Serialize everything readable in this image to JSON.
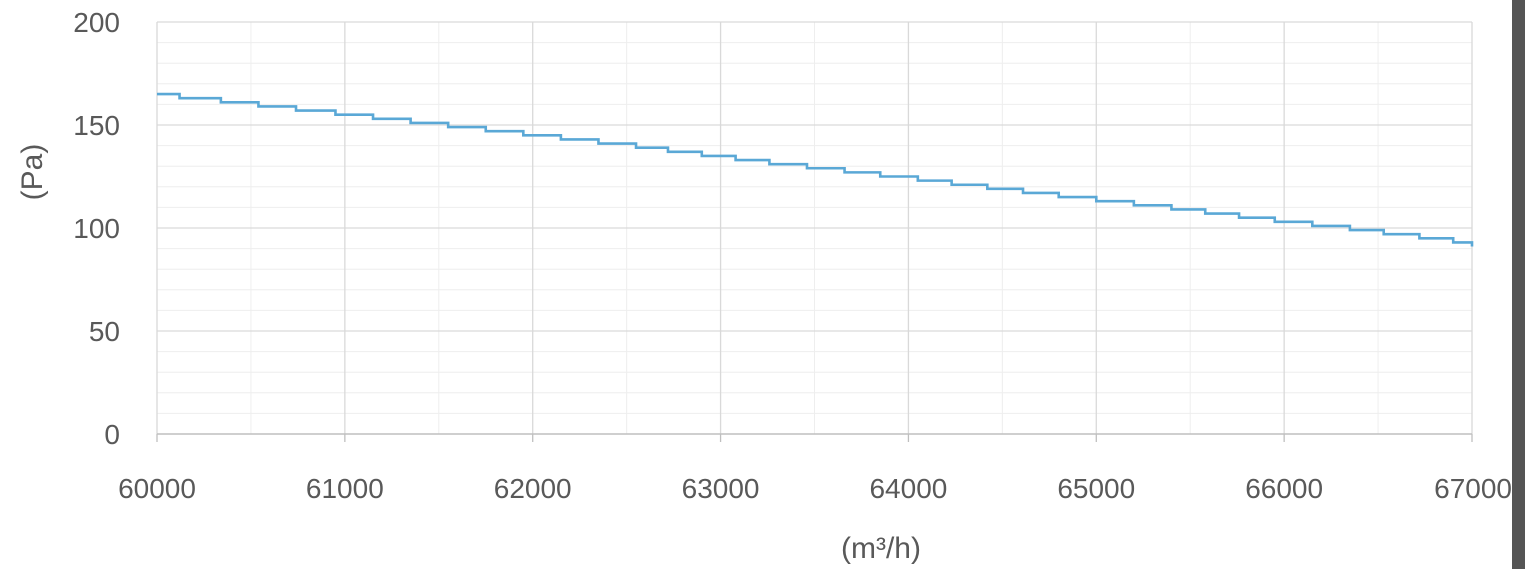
{
  "chart_data": {
    "type": "line",
    "line_style": "step",
    "xlabel": "(m³/h)",
    "ylabel": "(Pa)",
    "xlim": [
      60000,
      67000
    ],
    "ylim": [
      0,
      200
    ],
    "x_ticks": [
      "60000",
      "61000",
      "62000",
      "63000",
      "64000",
      "65000",
      "66000",
      "67000"
    ],
    "y_ticks": [
      "0",
      "50",
      "100",
      "150",
      "200"
    ],
    "grid": true,
    "series": [
      {
        "color": "#5aa8d6",
        "x": [
          60000,
          60120,
          60340,
          60540,
          60740,
          60950,
          61150,
          61350,
          61550,
          61750,
          61950,
          62150,
          62350,
          62550,
          62720,
          62900,
          63080,
          63260,
          63460,
          63660,
          63850,
          64050,
          64230,
          64420,
          64610,
          64800,
          65000,
          65200,
          65400,
          65580,
          65760,
          65950,
          66150,
          66350,
          66530,
          66720,
          66900,
          67000
        ],
        "y": [
          165,
          163,
          161,
          159,
          157,
          155,
          153,
          151,
          149,
          147,
          145,
          143,
          141,
          139,
          137,
          135,
          133,
          131,
          129,
          127,
          125,
          123,
          121,
          119,
          117,
          115,
          113,
          111,
          109,
          107,
          105,
          103,
          101,
          99,
          97,
          95,
          93,
          91
        ]
      }
    ]
  }
}
